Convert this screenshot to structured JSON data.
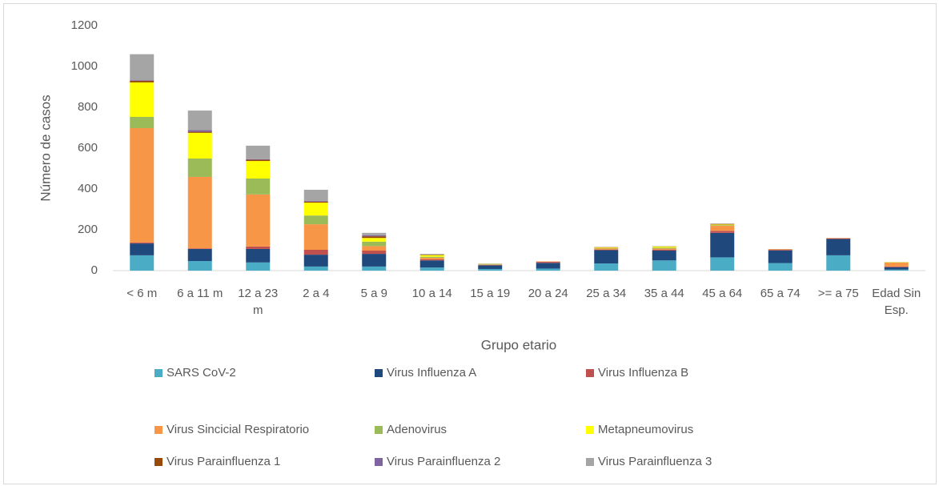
{
  "chart_data": {
    "type": "stacked_bar",
    "x_label": "Grupo etario",
    "y_label": "Número de casos",
    "categories": [
      "< 6 m",
      "6 a 11 m",
      "12 a 23 m",
      "2 a 4",
      "5 a 9",
      "10 a 14",
      "15 a 19",
      "20 a 24",
      "25 a 34",
      "35 a 44",
      "45 a 64",
      "65 a 74",
      ">= a 75",
      "Edad Sin Esp."
    ],
    "series": [
      {
        "name": "SARS CoV-2",
        "color": "#4bacc6",
        "values": [
          75,
          47,
          40,
          20,
          20,
          15,
          8,
          10,
          35,
          50,
          65,
          37,
          75,
          5
        ]
      },
      {
        "name": "Virus Influenza A",
        "color": "#1f497d",
        "values": [
          58,
          59,
          66,
          58,
          62,
          35,
          18,
          28,
          65,
          48,
          120,
          62,
          80,
          12
        ]
      },
      {
        "name": "Virus Influenza B",
        "color": "#c0504d",
        "values": [
          5,
          3,
          12,
          24,
          16,
          5,
          2,
          5,
          3,
          5,
          10,
          3,
          3,
          3
        ]
      },
      {
        "name": "Virus Sincicial Respiratorio",
        "color": "#f79646",
        "values": [
          560,
          350,
          255,
          125,
          22,
          8,
          2,
          2,
          5,
          5,
          25,
          2,
          2,
          20
        ]
      },
      {
        "name": "Adenovirus",
        "color": "#9bbb59",
        "values": [
          55,
          90,
          78,
          43,
          22,
          5,
          2,
          0,
          2,
          5,
          3,
          0,
          0,
          1
        ]
      },
      {
        "name": "Metapneumovirus",
        "color": "#ffff00",
        "values": [
          169,
          126,
          86,
          63,
          18,
          8,
          1,
          0,
          3,
          5,
          3,
          0,
          0,
          1
        ]
      },
      {
        "name": "Virus Parainfluenza 1",
        "color": "#984807",
        "values": [
          8,
          5,
          6,
          5,
          8,
          2,
          0,
          0,
          2,
          1,
          3,
          1,
          0,
          0
        ]
      },
      {
        "name": "Virus Parainfluenza 2",
        "color": "#8064a2",
        "values": [
          3,
          8,
          3,
          3,
          5,
          1,
          0,
          0,
          0,
          0,
          0,
          0,
          0,
          0
        ]
      },
      {
        "name": "Virus Parainfluenza 3",
        "color": "#a5a5a5",
        "values": [
          127,
          96,
          66,
          55,
          12,
          3,
          2,
          0,
          0,
          1,
          1,
          0,
          0,
          0
        ]
      }
    ],
    "ylim": [
      0,
      1200
    ],
    "yticks": [
      0,
      200,
      400,
      600,
      800,
      1000,
      1200
    ],
    "grid": false
  }
}
